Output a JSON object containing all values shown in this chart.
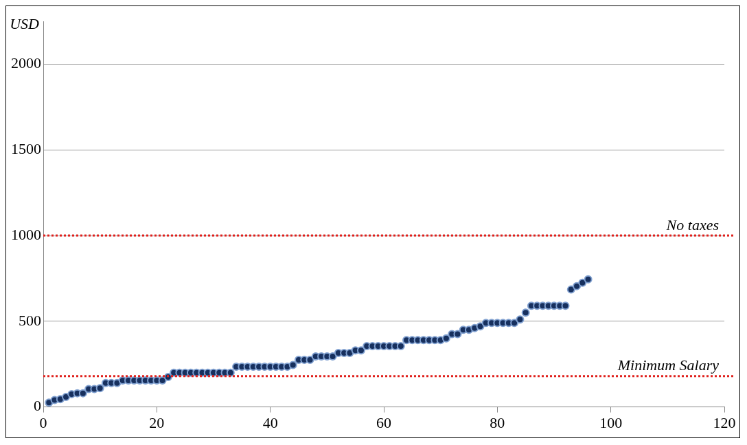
{
  "chart_data": {
    "type": "scatter",
    "ylabel": "USD",
    "xlim": [
      0,
      120
    ],
    "xticks": [
      0,
      20,
      40,
      60,
      80,
      100,
      120
    ],
    "ylim": [
      0,
      2250
    ],
    "yticks": [
      0,
      500,
      1000,
      1500,
      2000
    ],
    "grid": "y",
    "marker": "circle",
    "legend": false,
    "x": [
      1,
      2,
      3,
      4,
      5,
      6,
      7,
      8,
      9,
      10,
      11,
      12,
      13,
      14,
      15,
      16,
      17,
      18,
      19,
      20,
      21,
      22,
      23,
      24,
      25,
      26,
      27,
      28,
      29,
      30,
      31,
      32,
      33,
      34,
      35,
      36,
      37,
      38,
      39,
      40,
      41,
      42,
      43,
      44,
      45,
      46,
      47,
      48,
      49,
      50,
      51,
      52,
      53,
      54,
      55,
      56,
      57,
      58,
      59,
      60,
      61,
      62,
      63,
      64,
      65,
      66,
      67,
      68,
      69,
      70,
      71,
      72,
      73,
      74,
      75,
      76,
      77,
      78,
      79,
      80,
      81,
      82,
      83,
      84,
      85,
      86,
      87,
      88,
      89,
      90,
      91,
      92,
      93,
      94,
      95,
      96
    ],
    "series": [
      {
        "color": "#17305e",
        "values": [
          25,
          40,
          45,
          58,
          75,
          80,
          80,
          105,
          105,
          110,
          140,
          140,
          140,
          155,
          155,
          155,
          155,
          155,
          155,
          155,
          155,
          175,
          200,
          200,
          200,
          200,
          200,
          200,
          200,
          200,
          200,
          200,
          200,
          235,
          235,
          235,
          235,
          235,
          235,
          235,
          235,
          235,
          235,
          245,
          275,
          275,
          275,
          295,
          295,
          295,
          295,
          315,
          315,
          315,
          330,
          330,
          355,
          355,
          355,
          355,
          355,
          355,
          355,
          390,
          390,
          390,
          390,
          390,
          390,
          390,
          400,
          425,
          425,
          450,
          450,
          460,
          470,
          490,
          490,
          490,
          490,
          490,
          490,
          510,
          550,
          590,
          590,
          590,
          590,
          590,
          590,
          590,
          685,
          705,
          725,
          745
        ]
      }
    ],
    "ref_lines": [
      {
        "axis": "y",
        "value": 1000,
        "label": "No taxes",
        "color": "#e0201c",
        "line_style": "dotted"
      },
      {
        "axis": "y",
        "value": 180,
        "label": "Minimum Salary",
        "color": "#e0201c",
        "line_style": "dotted"
      }
    ]
  }
}
